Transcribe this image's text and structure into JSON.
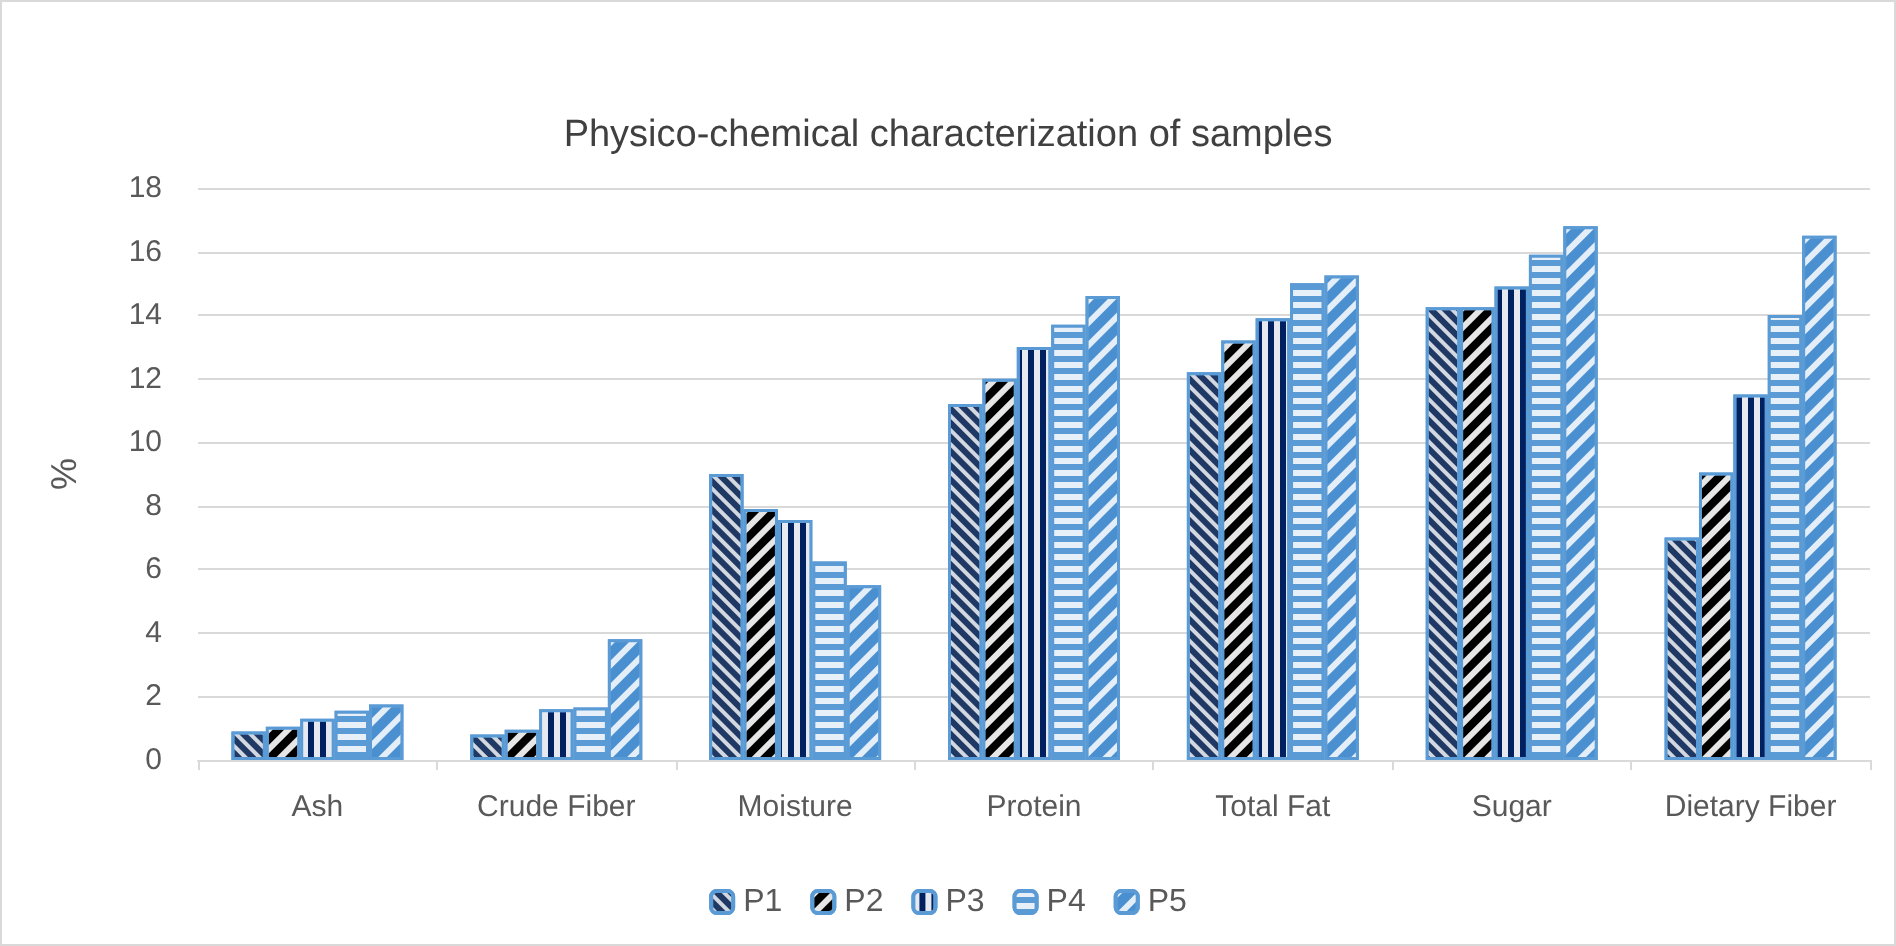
{
  "chart_data": {
    "type": "bar",
    "title": "Physico-chemical characterization of samples",
    "ylabel": "%",
    "categories": [
      "Ash",
      "Crude Fiber",
      "Moisture",
      "Protein",
      "Total Fat",
      "Sugar",
      "Dietary Fiber"
    ],
    "series": [
      {
        "name": "P1",
        "color": "#1f3864",
        "values": [
          0.9,
          0.8,
          9.0,
          11.2,
          12.2,
          14.25,
          7.0
        ]
      },
      {
        "name": "P2",
        "color": "#000000",
        "values": [
          1.05,
          0.95,
          7.9,
          12.0,
          13.2,
          14.25,
          9.05
        ]
      },
      {
        "name": "P3",
        "color": "#002060",
        "values": [
          1.3,
          1.6,
          7.55,
          13.0,
          13.9,
          14.9,
          11.5
        ]
      },
      {
        "name": "P4",
        "color": "#5b9bd5",
        "values": [
          1.55,
          1.65,
          6.25,
          13.7,
          15.0,
          15.9,
          14.0
        ]
      },
      {
        "name": "P5",
        "color": "#4a8fd0",
        "values": [
          1.75,
          3.8,
          5.5,
          14.6,
          15.25,
          16.8,
          16.5
        ]
      }
    ],
    "ylim": [
      0,
      18
    ],
    "yticks": [
      0,
      2,
      4,
      6,
      8,
      10,
      12,
      14,
      16,
      18
    ],
    "grid": "y",
    "legend": "bottom"
  }
}
